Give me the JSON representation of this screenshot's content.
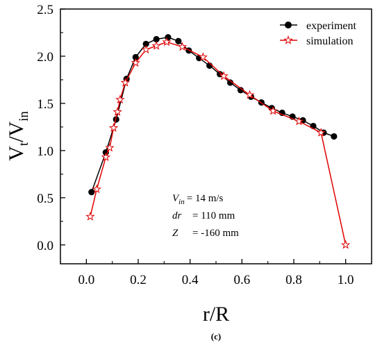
{
  "chart_data": {
    "type": "line",
    "xlabel": "r/R",
    "ylabel": "V",
    "ylabel_sub1": "t",
    "ylabel_mid": "/V",
    "ylabel_sub2": "in",
    "xlim": [
      -0.1,
      1.1
    ],
    "ylim": [
      -0.2,
      2.5
    ],
    "xticks": [
      0.0,
      0.2,
      0.4,
      0.6,
      0.8,
      1.0
    ],
    "xtick_labels": [
      "0.0",
      "0.2",
      "0.4",
      "0.6",
      "0.8",
      "1.0"
    ],
    "yticks": [
      0.0,
      0.5,
      1.0,
      1.5,
      2.0,
      2.5
    ],
    "ytick_labels": [
      "0.0",
      "0.5",
      "1.0",
      "1.5",
      "2.0",
      "2.5"
    ],
    "grid": false,
    "legend_position": "top-right",
    "series": [
      {
        "name": "experiment",
        "color": "#000000",
        "marker": "filled-circle",
        "x": [
          0.02,
          0.075,
          0.115,
          0.155,
          0.19,
          0.23,
          0.27,
          0.315,
          0.355,
          0.395,
          0.435,
          0.475,
          0.515,
          0.555,
          0.595,
          0.635,
          0.675,
          0.715,
          0.755,
          0.795,
          0.835,
          0.875,
          0.915,
          0.955
        ],
        "y": [
          0.56,
          0.98,
          1.33,
          1.76,
          1.99,
          2.13,
          2.18,
          2.2,
          2.16,
          2.06,
          1.98,
          1.9,
          1.81,
          1.72,
          1.64,
          1.57,
          1.51,
          1.45,
          1.4,
          1.36,
          1.32,
          1.26,
          1.19,
          1.15
        ]
      },
      {
        "name": "simulation",
        "color": "#e00000",
        "marker": "hollow-star",
        "x": [
          0.015,
          0.04,
          0.075,
          0.09,
          0.105,
          0.12,
          0.13,
          0.15,
          0.19,
          0.23,
          0.27,
          0.31,
          0.37,
          0.45,
          0.53,
          0.63,
          0.72,
          0.82,
          0.905,
          1.0
        ],
        "y": [
          0.3,
          0.59,
          0.93,
          1.03,
          1.24,
          1.41,
          1.54,
          1.72,
          1.93,
          2.07,
          2.11,
          2.15,
          2.1,
          1.99,
          1.79,
          1.59,
          1.42,
          1.31,
          1.19,
          0.0
        ]
      }
    ],
    "annotations": {
      "line1_var": "V",
      "line1_sub": "in",
      "line1_value": "= 14 m/s",
      "line2_var": "dr",
      "line2_value": "= 110 mm",
      "line3_var": "Z",
      "line3_value": "= -160 mm"
    },
    "caption": "(c)"
  }
}
